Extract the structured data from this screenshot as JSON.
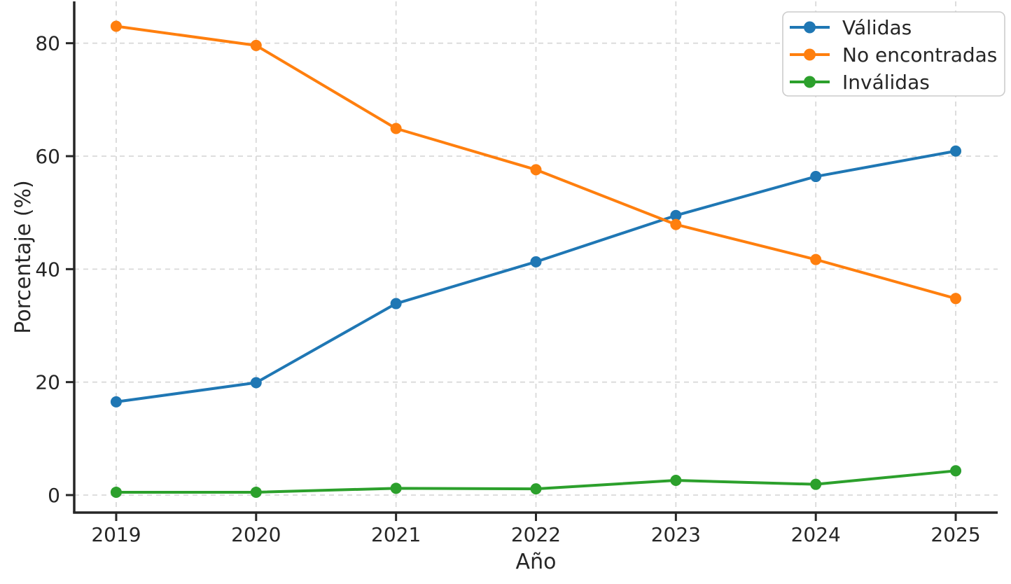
{
  "chart_data": {
    "type": "line",
    "title": "",
    "xlabel": "Año",
    "ylabel": "Porcentaje (%)",
    "x": [
      2019,
      2020,
      2021,
      2022,
      2023,
      2024,
      2025
    ],
    "x_tick_labels": [
      "2019",
      "2020",
      "2021",
      "2022",
      "2023",
      "2024",
      "2025"
    ],
    "y_ticks": [
      0,
      20,
      40,
      60,
      80
    ],
    "y_tick_labels": [
      "0",
      "20",
      "40",
      "60",
      "80"
    ],
    "xlim": [
      2018.7,
      2025.3
    ],
    "ylim": [
      -3.1,
      87.4
    ],
    "grid": true,
    "grid_style": "dashed",
    "legend_position": "upper right",
    "series": [
      {
        "name": "Válidas",
        "color": "#1f77b4",
        "marker": "circle",
        "values": [
          16.5,
          19.9,
          33.9,
          41.3,
          49.5,
          56.4,
          60.9
        ]
      },
      {
        "name": "No encontradas",
        "color": "#ff7f0e",
        "marker": "circle",
        "values": [
          83.0,
          79.6,
          64.9,
          57.6,
          47.9,
          41.7,
          34.8
        ]
      },
      {
        "name": "Inválidas",
        "color": "#2ca02c",
        "marker": "circle",
        "values": [
          0.5,
          0.5,
          1.2,
          1.1,
          2.6,
          1.9,
          4.3
        ]
      }
    ],
    "colors": {
      "background": "#ffffff",
      "grid": "#d9d9d9",
      "spine": "#262626",
      "tick_text": "#262626",
      "legend_border": "#cccccc",
      "legend_background": "#ffffff"
    }
  }
}
